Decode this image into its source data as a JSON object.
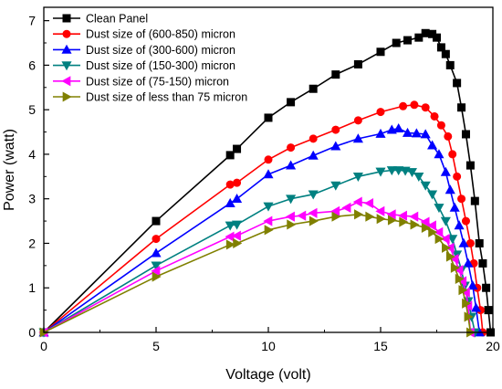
{
  "chart_data": {
    "type": "line",
    "xlabel": "Voltage (volt)",
    "ylabel": "Power (watt)",
    "xlim": [
      0,
      20
    ],
    "ylim": [
      0,
      7.3
    ],
    "xticks": [
      0,
      5,
      10,
      15,
      20
    ],
    "yticks": [
      0,
      1,
      2,
      3,
      4,
      5,
      6,
      7
    ],
    "legend_position": "top-left",
    "grid": false,
    "series": [
      {
        "name": "Clean Panel",
        "color": "#000000",
        "marker": "square",
        "x": [
          0,
          5,
          8.3,
          8.6,
          10,
          11,
          12,
          13,
          14,
          15,
          15.7,
          16.2,
          16.7,
          17.0,
          17.3,
          17.5,
          17.7,
          17.9,
          18.1,
          18.4,
          18.6,
          18.8,
          19.0,
          19.2,
          19.4,
          19.55,
          19.7,
          19.8,
          19.9
        ],
        "y": [
          0,
          2.5,
          3.98,
          4.12,
          4.82,
          5.17,
          5.47,
          5.79,
          6.02,
          6.3,
          6.5,
          6.56,
          6.62,
          6.72,
          6.7,
          6.62,
          6.4,
          6.25,
          6.0,
          5.6,
          5.05,
          4.45,
          3.75,
          2.95,
          2.0,
          1.55,
          1.0,
          0.5,
          0
        ]
      },
      {
        "name": "Dust size of (600-850) micron",
        "color": "#ff0000",
        "marker": "circle",
        "x": [
          0,
          5,
          8.3,
          8.6,
          10,
          11,
          12,
          13,
          14,
          15,
          16,
          16.5,
          17.0,
          17.4,
          17.7,
          18.0,
          18.2,
          18.4,
          18.6,
          18.8,
          19.0,
          19.15,
          19.3,
          19.45,
          19.55
        ],
        "y": [
          0,
          2.1,
          3.32,
          3.36,
          3.88,
          4.15,
          4.35,
          4.55,
          4.76,
          4.95,
          5.08,
          5.11,
          5.05,
          4.85,
          4.65,
          4.4,
          4.0,
          3.5,
          3.0,
          2.5,
          2.0,
          1.55,
          1.0,
          0.5,
          0
        ]
      },
      {
        "name": "Dust size of (300-600) micron",
        "color": "#0000ff",
        "marker": "triangle-up",
        "x": [
          0,
          5,
          8.3,
          8.6,
          10,
          11,
          12,
          13,
          14,
          15,
          15.5,
          15.8,
          16.2,
          16.6,
          17.0,
          17.3,
          17.6,
          17.9,
          18.1,
          18.3,
          18.5,
          18.7,
          18.9,
          19.1,
          19.25,
          19.4
        ],
        "y": [
          0,
          1.78,
          2.9,
          3.0,
          3.55,
          3.75,
          3.97,
          4.18,
          4.35,
          4.46,
          4.55,
          4.58,
          4.48,
          4.47,
          4.45,
          4.2,
          4.0,
          3.6,
          3.2,
          2.8,
          2.4,
          2.0,
          1.55,
          1.05,
          0.55,
          0
        ]
      },
      {
        "name": "Dust size of (150-300) micron",
        "color": "#008080",
        "marker": "triangle-down",
        "x": [
          0,
          5,
          8.3,
          8.6,
          10,
          11,
          12,
          13,
          14,
          15,
          15.5,
          15.8,
          16.1,
          16.4,
          16.7,
          17.0,
          17.3,
          17.6,
          17.9,
          18.2,
          18.4,
          18.6,
          18.75,
          18.9,
          19.05,
          19.2
        ],
        "y": [
          0,
          1.5,
          2.4,
          2.42,
          2.83,
          3.0,
          3.1,
          3.3,
          3.5,
          3.61,
          3.64,
          3.64,
          3.63,
          3.6,
          3.5,
          3.3,
          3.1,
          2.8,
          2.5,
          2.1,
          1.75,
          1.4,
          1.05,
          0.7,
          0.35,
          0
        ]
      },
      {
        "name": "Dust size of (75-150) micron",
        "color": "#ff00ff",
        "marker": "triangle-left",
        "x": [
          0,
          5,
          8.3,
          8.6,
          10,
          11,
          11.5,
          12,
          13,
          13.5,
          14,
          14.5,
          15,
          15.5,
          16,
          16.5,
          17,
          17.3,
          17.6,
          17.9,
          18.1,
          18.3,
          18.5,
          18.65,
          18.8,
          18.9,
          19.0
        ],
        "y": [
          0,
          1.38,
          2.15,
          2.17,
          2.5,
          2.6,
          2.62,
          2.68,
          2.72,
          2.8,
          2.93,
          2.9,
          2.72,
          2.65,
          2.62,
          2.6,
          2.48,
          2.4,
          2.25,
          2.1,
          1.9,
          1.65,
          1.4,
          1.15,
          0.9,
          0.6,
          0
        ]
      },
      {
        "name": "Dust size of less than 75 micron",
        "color": "#808000",
        "marker": "triangle-right",
        "x": [
          0,
          5,
          8.3,
          8.6,
          10,
          11,
          12,
          13,
          14,
          14.5,
          15,
          15.5,
          16,
          16.5,
          17,
          17.3,
          17.6,
          17.9,
          18.1,
          18.3,
          18.5,
          18.65,
          18.8,
          18.9,
          19.0
        ],
        "y": [
          0,
          1.25,
          1.97,
          2.0,
          2.3,
          2.42,
          2.5,
          2.6,
          2.65,
          2.6,
          2.55,
          2.52,
          2.48,
          2.42,
          2.35,
          2.25,
          2.1,
          1.9,
          1.7,
          1.45,
          1.2,
          0.95,
          0.65,
          0.35,
          0
        ]
      }
    ]
  }
}
